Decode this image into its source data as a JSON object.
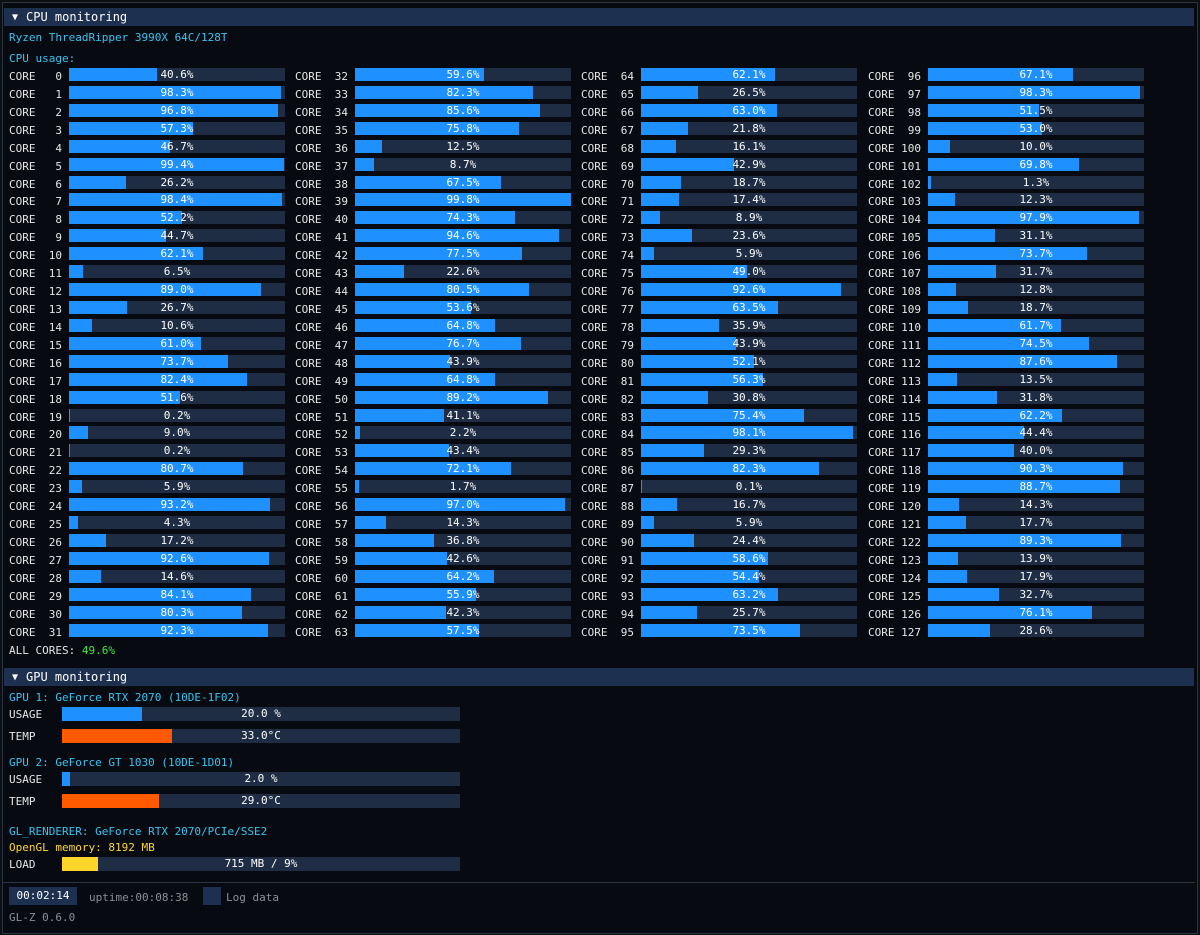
{
  "cpu": {
    "header_title": "CPU monitoring",
    "model": "Ryzen ThreadRipper 3990X 64C/128T",
    "usage_label": "CPU usage:",
    "core_prefix": "CORE",
    "cores": [
      40.6,
      98.3,
      96.8,
      57.3,
      46.7,
      99.4,
      26.2,
      98.4,
      52.2,
      44.7,
      62.1,
      6.5,
      89.0,
      26.7,
      10.6,
      61.0,
      73.7,
      82.4,
      51.6,
      0.2,
      9.0,
      0.2,
      80.7,
      5.9,
      93.2,
      4.3,
      17.2,
      92.6,
      14.6,
      84.1,
      80.3,
      92.3,
      59.6,
      82.3,
      85.6,
      75.8,
      12.5,
      8.7,
      67.5,
      99.8,
      74.3,
      94.6,
      77.5,
      22.6,
      80.5,
      53.6,
      64.8,
      76.7,
      43.9,
      64.8,
      89.2,
      41.1,
      2.2,
      43.4,
      72.1,
      1.7,
      97.0,
      14.3,
      36.8,
      42.6,
      64.2,
      55.9,
      42.3,
      57.5,
      62.1,
      26.5,
      63.0,
      21.8,
      16.1,
      42.9,
      18.7,
      17.4,
      8.9,
      23.6,
      5.9,
      49.0,
      92.6,
      63.5,
      35.9,
      43.9,
      52.1,
      56.3,
      30.8,
      75.4,
      98.1,
      29.3,
      82.3,
      0.1,
      16.7,
      5.9,
      24.4,
      58.6,
      54.4,
      63.2,
      25.7,
      73.5,
      67.1,
      98.3,
      51.5,
      53.0,
      10.0,
      69.8,
      1.3,
      12.3,
      97.9,
      31.1,
      73.7,
      31.7,
      12.8,
      18.7,
      61.7,
      74.5,
      87.6,
      13.5,
      31.8,
      62.2,
      44.4,
      40.0,
      90.3,
      88.7,
      14.3,
      17.7,
      89.3,
      13.9,
      17.9,
      32.7,
      76.1,
      28.6
    ],
    "all_cores_label": "ALL CORES:",
    "all_cores_value": "49.6%"
  },
  "gpu": {
    "header_title": "GPU monitoring",
    "gpus": [
      {
        "title": "GPU 1: GeForce RTX 2070 (10DE-1F02)",
        "usage_label": "USAGE",
        "usage_text": "20.0 %",
        "usage_value": 20.0,
        "temp_label": "TEMP",
        "temp_text": "33.0°C",
        "temp_fraction": 0.277
      },
      {
        "title": "GPU 2: GeForce GT 1030 (10DE-1D01)",
        "usage_label": "USAGE",
        "usage_text": "2.0 %",
        "usage_value": 2.0,
        "temp_label": "TEMP",
        "temp_text": "29.0°C",
        "temp_fraction": 0.243
      }
    ],
    "gl_renderer": "GL_RENDERER: GeForce RTX 2070/PCIe/SSE2",
    "opengl_memory": "OpenGL memory: 8192 MB",
    "load_label": "LOAD",
    "load_text": "715 MB / 9%",
    "load_value": 9
  },
  "footer": {
    "elapsed": "00:02:14",
    "uptime": "uptime:00:08:38",
    "log_label": "Log data",
    "version": "GL-Z 0.6.0"
  },
  "colors": {
    "bar_blue": "#1e90ff",
    "temp_orange": "#ff5a00",
    "load_yellow": "#ffd52a"
  }
}
